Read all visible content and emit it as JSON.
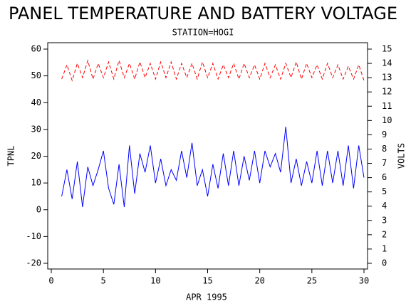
{
  "chart_data": {
    "type": "line",
    "title": "PANEL TEMPERATURE AND BATTERY VOLTAGE",
    "subtitle": "STATION=HOGI",
    "x_label": "APR 1995",
    "y_label": "TPNL",
    "y2_label": "VOLTS",
    "x": [
      1,
      1.5,
      2,
      2.5,
      3,
      3.5,
      4,
      4.5,
      5,
      5.5,
      6,
      6.5,
      7,
      7.5,
      8,
      8.5,
      9,
      9.5,
      10,
      10.5,
      11,
      11.5,
      12,
      12.5,
      13,
      13.5,
      14,
      14.5,
      15,
      15.5,
      16,
      16.5,
      17,
      17.5,
      18,
      18.5,
      19,
      19.5,
      20,
      20.5,
      21,
      21.5,
      22,
      22.5,
      23,
      23.5,
      24,
      24.5,
      25,
      25.5,
      26,
      26.5,
      27,
      27.5,
      28,
      28.5,
      29,
      29.5,
      30
    ],
    "series": [
      {
        "name": "TPNL",
        "color": "#0000ff",
        "dashed": false,
        "axis": "y",
        "values": [
          5,
          15,
          4,
          18,
          1,
          16,
          9,
          15,
          22,
          8,
          2,
          17,
          1,
          24,
          6,
          21,
          14,
          24,
          10,
          19,
          9,
          15,
          11,
          22,
          12,
          25,
          9,
          15,
          5,
          17,
          8,
          21,
          9,
          22,
          9,
          20,
          11,
          22,
          10,
          22,
          16,
          21,
          14,
          31,
          10,
          19,
          9,
          18,
          10,
          22,
          9,
          22,
          10,
          22,
          9,
          24,
          8,
          24,
          12
        ]
      },
      {
        "name": "VOLTS",
        "color": "#ff0000",
        "dashed": true,
        "axis": "y2",
        "values": [
          12.9,
          13.9,
          12.8,
          14.0,
          13.0,
          14.2,
          12.9,
          14.0,
          13.0,
          14.1,
          12.9,
          14.2,
          13.0,
          14.0,
          12.9,
          14.1,
          13.0,
          14.0,
          12.9,
          14.1,
          13.0,
          14.1,
          12.9,
          14.0,
          13.0,
          14.0,
          12.9,
          14.1,
          13.0,
          14.0,
          12.9,
          13.9,
          13.0,
          14.0,
          12.9,
          14.0,
          13.0,
          13.9,
          12.9,
          14.0,
          13.0,
          13.9,
          12.9,
          14.0,
          13.0,
          14.1,
          12.9,
          14.0,
          13.0,
          13.9,
          12.9,
          14.0,
          13.0,
          13.9,
          12.9,
          13.8,
          12.9,
          13.9,
          12.8
        ]
      }
    ],
    "xlim": [
      0,
      30
    ],
    "xticks": [
      0,
      5,
      10,
      15,
      20,
      25,
      30
    ],
    "ylim": [
      -20,
      60
    ],
    "yticks": [
      -20,
      -10,
      0,
      10,
      20,
      30,
      40,
      50,
      60
    ],
    "y2lim": [
      0,
      15
    ],
    "y2ticks": [
      0,
      1,
      2,
      3,
      4,
      5,
      6,
      7,
      8,
      9,
      10,
      11,
      12,
      13,
      14,
      15
    ]
  }
}
